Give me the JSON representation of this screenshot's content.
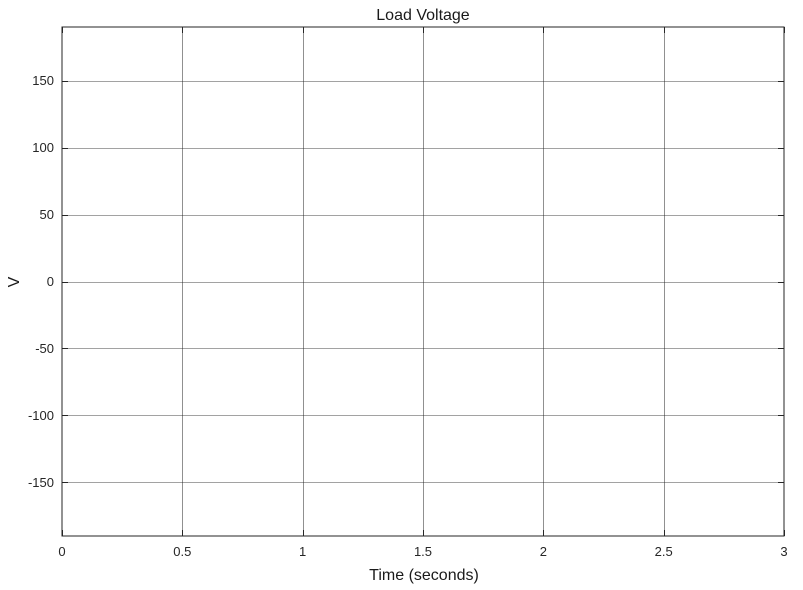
{
  "chart_data": {
    "type": "line",
    "title": "Load Voltage",
    "xlabel": "Time (seconds)",
    "ylabel": "V",
    "xlim": [
      0,
      3
    ],
    "ylim": [
      -190,
      190
    ],
    "x_ticks": [
      0,
      0.5,
      1,
      1.5,
      2,
      2.5,
      3
    ],
    "x_tick_labels": [
      "0",
      "0.5",
      "1",
      "1.5",
      "2",
      "2.5",
      "3"
    ],
    "y_ticks": [
      150,
      100,
      50,
      0,
      -50,
      -100,
      -150
    ],
    "y_tick_labels": [
      "150",
      "100",
      "50",
      "0",
      "-50",
      "-100",
      "-150"
    ],
    "grid": true,
    "series": []
  },
  "colors": {
    "background": "#ffffff",
    "axes_edge": "#262626",
    "grid": "#262626",
    "text": "#1a1a1a"
  }
}
